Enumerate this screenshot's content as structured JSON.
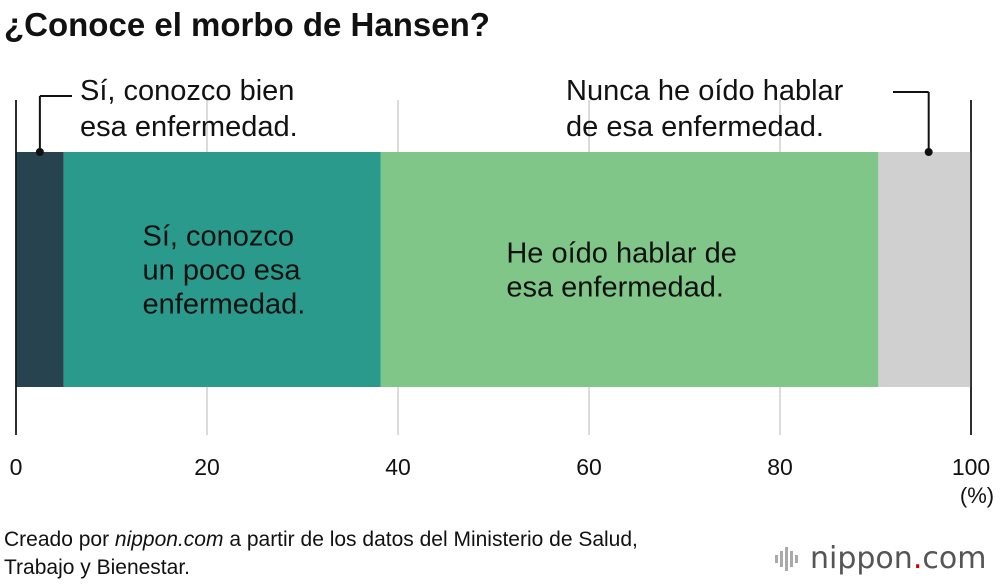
{
  "title": "¿Conoce el morbo de Hansen?",
  "chart_data": {
    "type": "bar",
    "orientation": "horizontal-stacked",
    "segments": [
      {
        "label_lines": [
          "Sí, conozco bien",
          "esa enfermedad."
        ],
        "value": 5.0,
        "color": "#26434f",
        "label_pos": "outside-left"
      },
      {
        "label_lines": [
          "Sí, conozco",
          "un poco esa",
          "enfermedad."
        ],
        "value": 33.2,
        "color": "#2a9a8c",
        "label_pos": "inside"
      },
      {
        "label_lines": [
          "He oído hablar de",
          "esa enfermedad."
        ],
        "value": 52.1,
        "color": "#80c688",
        "label_pos": "inside"
      },
      {
        "label_lines": [
          "Nunca he oído hablar",
          "de esa enfermedad."
        ],
        "value": 9.7,
        "color": "#d0d0d0",
        "label_pos": "outside-right"
      }
    ],
    "xlim": [
      0,
      100
    ],
    "xticks": [
      "0",
      "20",
      "40",
      "60",
      "80",
      "100"
    ],
    "xunit": "(%)",
    "grid": true
  },
  "source": {
    "prefix": "Creado por ",
    "site": "nippon.com",
    "suffix_line1": " a partir de los datos del Ministerio de Salud,",
    "line2": "Trabajo y Bienestar."
  },
  "logo": {
    "brand": "nippon",
    "dot": ".",
    "tld": "com"
  }
}
